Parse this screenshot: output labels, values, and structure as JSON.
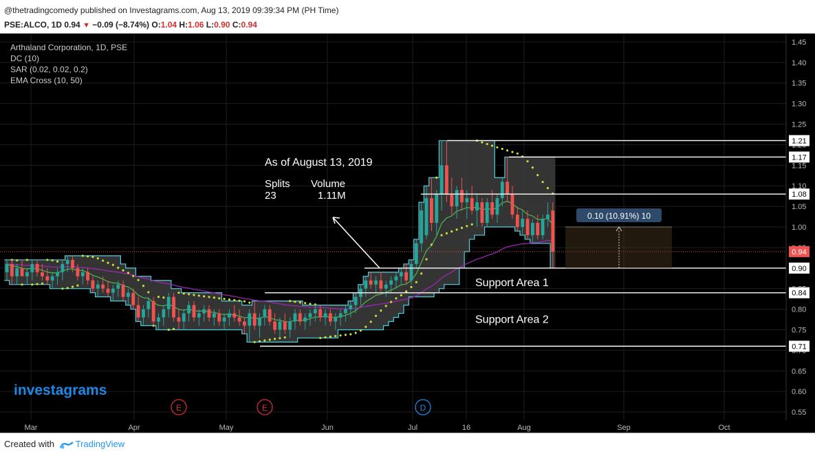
{
  "header": {
    "published_line": "@thetradingcomedy published on Investagrams.com, Aug 13, 2019 09:39:34 PM (PH Time)",
    "ticker": "PSE:ALCO, 1D",
    "last": "0.94",
    "change": "−0.09 (−8.74%)",
    "o_label": "O:",
    "o": "1.04",
    "h_label": "H:",
    "h": "1.06",
    "l_label": "L:",
    "l": "0.90",
    "c_label": "C:",
    "c": "0.94"
  },
  "legend": [
    "Arthaland Corporation, 1D, PSE",
    "DC (10)",
    "SAR (0.02, 0.02, 0.2)",
    "EMA Cross (10, 50)"
  ],
  "annotations": {
    "as_of": "As of August 13, 2019",
    "splits_label": "Splits",
    "volume_label": "Volume",
    "splits_value": "23",
    "volume_value": "1.11M",
    "support1": "Support Area 1",
    "support2": "Support Area 2",
    "measure": "0.10 (10.91%) 10"
  },
  "watermark": "investagrams",
  "footer": {
    "created_with": "Created with",
    "tradingview": "TradingView"
  },
  "colors": {
    "background": "#000000",
    "up": "#26a69a",
    "down": "#ef5350",
    "donchian": "#4dd0e1",
    "donchian_fill": "#3a3a3a",
    "sar": "#cddc39",
    "ema10": "#4caf50",
    "ema50": "#9c27b0",
    "price_tag": "#ef5350",
    "measure_box": "#2e4a6b",
    "watermark": "#1e88e5"
  },
  "chart_data": {
    "type": "candlestick",
    "title": "Arthaland Corporation, 1D, PSE",
    "y_ticks": [
      "0.55",
      "0.60",
      "0.65",
      "0.70",
      "0.75",
      "0.80",
      "0.85",
      "0.90",
      "0.95",
      "1.00",
      "1.05",
      "1.10",
      "1.15",
      "1.20",
      "1.25",
      "1.30",
      "1.35",
      "1.40",
      "1.45"
    ],
    "ylim": [
      0.53,
      1.47
    ],
    "x_ticks": [
      "Mar",
      "Apr",
      "May",
      "Jun",
      "Jul",
      "16",
      "Aug",
      "Sep",
      "Oct"
    ],
    "last_price": 0.94,
    "price_levels": [
      {
        "value": 1.21,
        "label": "1.21"
      },
      {
        "value": 1.17,
        "label": "1.17"
      },
      {
        "value": 1.08,
        "label": "1.08"
      },
      {
        "value": 0.9,
        "label": "0.90"
      },
      {
        "value": 0.84,
        "label": "0.84"
      },
      {
        "value": 0.71,
        "label": "0.71"
      }
    ],
    "event_markers": [
      "E",
      "E",
      "D"
    ],
    "candles": [
      [
        0.89,
        0.92,
        0.87,
        0.91
      ],
      [
        0.91,
        0.92,
        0.86,
        0.88
      ],
      [
        0.88,
        0.91,
        0.86,
        0.9
      ],
      [
        0.9,
        0.92,
        0.88,
        0.88
      ],
      [
        0.88,
        0.9,
        0.86,
        0.89
      ],
      [
        0.89,
        0.92,
        0.87,
        0.91
      ],
      [
        0.91,
        0.92,
        0.88,
        0.89
      ],
      [
        0.89,
        0.91,
        0.87,
        0.88
      ],
      [
        0.88,
        0.9,
        0.86,
        0.87
      ],
      [
        0.87,
        0.89,
        0.85,
        0.88
      ],
      [
        0.88,
        0.9,
        0.86,
        0.89
      ],
      [
        0.89,
        0.92,
        0.87,
        0.91
      ],
      [
        0.91,
        0.93,
        0.89,
        0.92
      ],
      [
        0.92,
        0.93,
        0.89,
        0.9
      ],
      [
        0.9,
        0.91,
        0.87,
        0.88
      ],
      [
        0.88,
        0.9,
        0.86,
        0.89
      ],
      [
        0.89,
        0.9,
        0.86,
        0.87
      ],
      [
        0.87,
        0.88,
        0.84,
        0.85
      ],
      [
        0.85,
        0.87,
        0.83,
        0.86
      ],
      [
        0.86,
        0.88,
        0.84,
        0.85
      ],
      [
        0.85,
        0.87,
        0.83,
        0.84
      ],
      [
        0.84,
        0.86,
        0.82,
        0.85
      ],
      [
        0.85,
        0.87,
        0.83,
        0.86
      ],
      [
        0.86,
        0.87,
        0.82,
        0.83
      ],
      [
        0.83,
        0.85,
        0.81,
        0.84
      ],
      [
        0.84,
        0.85,
        0.8,
        0.81
      ],
      [
        0.81,
        0.83,
        0.77,
        0.78
      ],
      [
        0.78,
        0.81,
        0.76,
        0.8
      ],
      [
        0.8,
        0.83,
        0.78,
        0.82
      ],
      [
        0.82,
        0.83,
        0.76,
        0.77
      ],
      [
        0.77,
        0.79,
        0.75,
        0.78
      ],
      [
        0.78,
        0.81,
        0.76,
        0.8
      ],
      [
        0.8,
        0.84,
        0.78,
        0.83
      ],
      [
        0.83,
        0.84,
        0.77,
        0.78
      ],
      [
        0.78,
        0.8,
        0.75,
        0.77
      ],
      [
        0.77,
        0.8,
        0.75,
        0.79
      ],
      [
        0.79,
        0.82,
        0.77,
        0.81
      ],
      [
        0.81,
        0.82,
        0.77,
        0.78
      ],
      [
        0.78,
        0.8,
        0.76,
        0.79
      ],
      [
        0.79,
        0.81,
        0.77,
        0.8
      ],
      [
        0.8,
        0.81,
        0.77,
        0.78
      ],
      [
        0.78,
        0.8,
        0.76,
        0.79
      ],
      [
        0.79,
        0.8,
        0.76,
        0.77
      ],
      [
        0.77,
        0.79,
        0.75,
        0.78
      ],
      [
        0.78,
        0.8,
        0.76,
        0.79
      ],
      [
        0.79,
        0.81,
        0.77,
        0.78
      ],
      [
        0.78,
        0.8,
        0.76,
        0.77
      ],
      [
        0.77,
        0.78,
        0.74,
        0.76
      ],
      [
        0.76,
        0.8,
        0.72,
        0.79
      ],
      [
        0.79,
        0.82,
        0.75,
        0.76
      ],
      [
        0.76,
        0.79,
        0.73,
        0.78
      ],
      [
        0.78,
        0.81,
        0.76,
        0.8
      ],
      [
        0.8,
        0.81,
        0.76,
        0.77
      ],
      [
        0.77,
        0.79,
        0.74,
        0.75
      ],
      [
        0.75,
        0.78,
        0.73,
        0.77
      ],
      [
        0.77,
        0.79,
        0.74,
        0.75
      ],
      [
        0.75,
        0.78,
        0.73,
        0.77
      ],
      [
        0.77,
        0.8,
        0.75,
        0.79
      ],
      [
        0.79,
        0.8,
        0.76,
        0.77
      ],
      [
        0.77,
        0.79,
        0.75,
        0.78
      ],
      [
        0.78,
        0.8,
        0.76,
        0.79
      ],
      [
        0.79,
        0.81,
        0.77,
        0.8
      ],
      [
        0.8,
        0.81,
        0.77,
        0.78
      ],
      [
        0.78,
        0.8,
        0.76,
        0.79
      ],
      [
        0.79,
        0.8,
        0.76,
        0.77
      ],
      [
        0.77,
        0.79,
        0.75,
        0.78
      ],
      [
        0.78,
        0.8,
        0.76,
        0.79
      ],
      [
        0.79,
        0.81,
        0.77,
        0.8
      ],
      [
        0.8,
        0.82,
        0.78,
        0.81
      ],
      [
        0.81,
        0.84,
        0.79,
        0.83
      ],
      [
        0.83,
        0.86,
        0.81,
        0.85
      ],
      [
        0.85,
        0.88,
        0.83,
        0.87
      ],
      [
        0.87,
        0.89,
        0.85,
        0.86
      ],
      [
        0.86,
        0.88,
        0.84,
        0.87
      ],
      [
        0.87,
        0.89,
        0.84,
        0.85
      ],
      [
        0.85,
        0.87,
        0.83,
        0.86
      ],
      [
        0.86,
        0.88,
        0.84,
        0.87
      ],
      [
        0.87,
        0.89,
        0.85,
        0.88
      ],
      [
        0.88,
        0.9,
        0.86,
        0.89
      ],
      [
        0.89,
        0.91,
        0.86,
        0.87
      ],
      [
        0.87,
        0.92,
        0.86,
        0.91
      ],
      [
        0.91,
        0.97,
        0.9,
        0.96
      ],
      [
        0.96,
        1.06,
        0.94,
        1.04
      ],
      [
        0.98,
        1.1,
        0.97,
        1.07
      ],
      [
        1.07,
        1.12,
        0.99,
        1.01
      ],
      [
        1.01,
        1.09,
        0.98,
        1.08
      ],
      [
        1.08,
        1.21,
        1.04,
        1.15
      ],
      [
        1.15,
        1.21,
        1.06,
        1.08
      ],
      [
        1.08,
        1.12,
        1.03,
        1.05
      ],
      [
        1.05,
        1.1,
        1.02,
        1.09
      ],
      [
        1.09,
        1.12,
        1.04,
        1.06
      ],
      [
        1.06,
        1.09,
        1.02,
        1.07
      ],
      [
        1.07,
        1.1,
        1.03,
        1.04
      ],
      [
        1.04,
        1.08,
        1.0,
        1.06
      ],
      [
        1.06,
        1.07,
        1.0,
        1.01
      ],
      [
        1.01,
        1.07,
        1.0,
        1.06
      ],
      [
        1.06,
        1.09,
        1.02,
        1.03
      ],
      [
        1.03,
        1.08,
        1.01,
        1.07
      ],
      [
        1.07,
        1.12,
        1.05,
        1.11
      ],
      [
        1.11,
        1.17,
        1.06,
        1.08
      ],
      [
        1.08,
        1.1,
        1.02,
        1.03
      ],
      [
        1.03,
        1.05,
        0.99,
        1.0
      ],
      [
        1.0,
        1.04,
        0.98,
        1.02
      ],
      [
        1.02,
        1.04,
        0.97,
        0.98
      ],
      [
        0.98,
        1.02,
        0.96,
        1.01
      ],
      [
        1.01,
        1.03,
        0.97,
        0.98
      ],
      [
        0.98,
        1.03,
        0.97,
        1.02
      ],
      [
        1.02,
        1.06,
        1.0,
        1.03
      ],
      [
        1.04,
        1.06,
        0.9,
        0.94
      ]
    ]
  }
}
